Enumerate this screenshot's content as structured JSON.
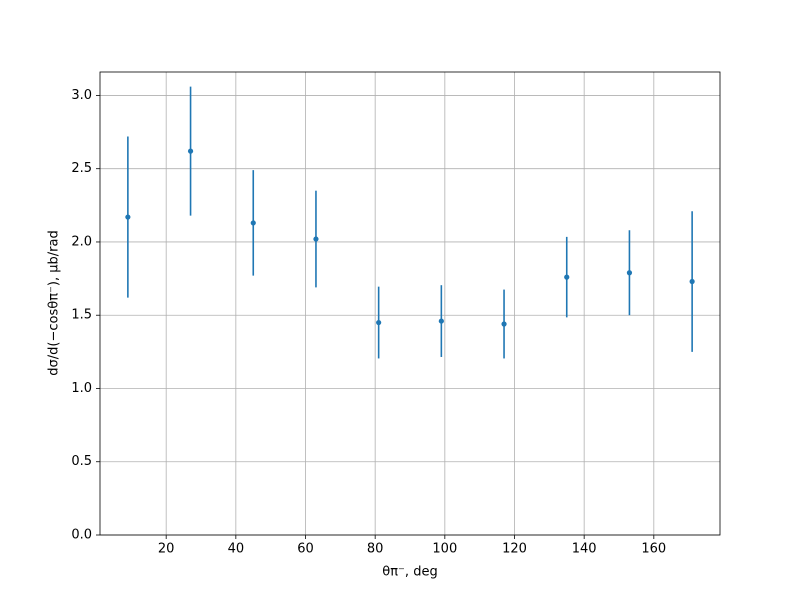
{
  "chart_data": {
    "type": "errorbar",
    "xlabel": "θπ⁻, deg",
    "ylabel": "dσ/d(−cosθπ⁻), μb/rad",
    "x": [
      9,
      27,
      45,
      63,
      81,
      99,
      117,
      135,
      153,
      171
    ],
    "series": [
      {
        "color": "#1f77b4",
        "values": [
          2.17,
          2.62,
          2.13,
          2.02,
          1.45,
          1.46,
          1.44,
          1.76,
          1.79,
          1.73
        ],
        "errors": [
          0.55,
          0.44,
          0.36,
          0.33,
          0.245,
          0.245,
          0.235,
          0.275,
          0.29,
          0.48
        ]
      }
    ],
    "xlim": [
      1,
      179
    ],
    "ylim": [
      0,
      3.16
    ],
    "xticks": [
      20,
      40,
      60,
      80,
      100,
      120,
      140,
      160
    ],
    "yticks": [
      {
        "value": 0,
        "label": "0.0"
      },
      {
        "value": 0.5,
        "label": "0.5"
      },
      {
        "value": 1,
        "label": "1.0"
      },
      {
        "value": 1.5,
        "label": "1.5"
      },
      {
        "value": 2,
        "label": "2.0"
      },
      {
        "value": 2.5,
        "label": "2.5"
      },
      {
        "value": 3,
        "label": "3.0"
      }
    ],
    "grid": true
  }
}
